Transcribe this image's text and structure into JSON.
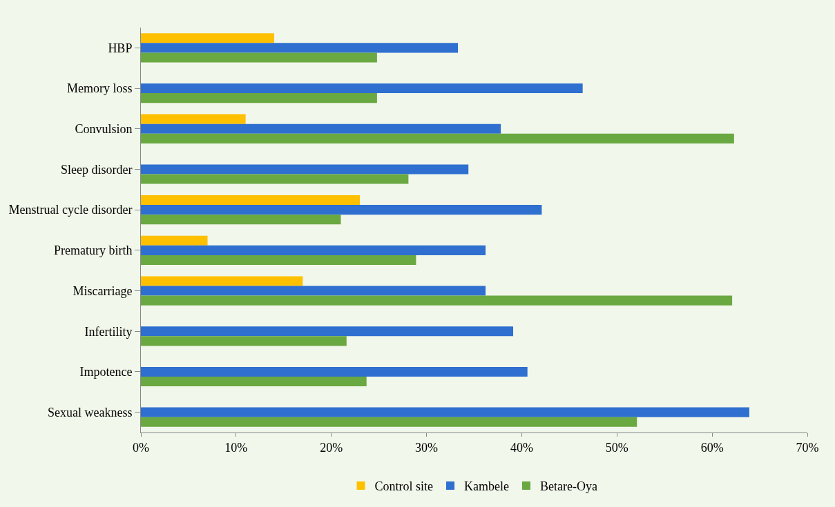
{
  "chart_data": {
    "type": "bar",
    "orientation": "horizontal",
    "categories": [
      "HBP",
      "Memory loss",
      "Convulsion",
      "Sleep disorder",
      "Menstrual cycle disorder",
      "Prematury birth",
      "Miscarriage",
      "Infertility",
      "Impotence",
      "Sexual weakness"
    ],
    "series": [
      {
        "name": "Control site",
        "color": "#ffc000",
        "values": [
          14,
          null,
          11,
          null,
          23,
          7,
          17,
          null,
          null,
          null
        ]
      },
      {
        "name": "Kambele",
        "color": "#2e6fd0",
        "values": [
          33.3,
          46.4,
          37.8,
          34.4,
          42.1,
          36.2,
          36.2,
          39.1,
          40.6,
          63.9
        ]
      },
      {
        "name": "Betare-Oya",
        "color": "#6aa842",
        "values": [
          24.8,
          24.8,
          62.3,
          28.1,
          21,
          28.9,
          62.1,
          21.6,
          23.7,
          52.1
        ]
      }
    ],
    "xlim": [
      0,
      70
    ],
    "xticks": [
      {
        "value": 0,
        "label": "0%"
      },
      {
        "value": 10,
        "label": "10%"
      },
      {
        "value": 20,
        "label": "20%"
      },
      {
        "value": 30,
        "label": "30%"
      },
      {
        "value": 40,
        "label": "40%"
      },
      {
        "value": 50,
        "label": "50%"
      },
      {
        "value": 60,
        "label": "60%"
      },
      {
        "value": 70,
        "label": "70%"
      }
    ],
    "grid": false,
    "legend": "bottom"
  }
}
